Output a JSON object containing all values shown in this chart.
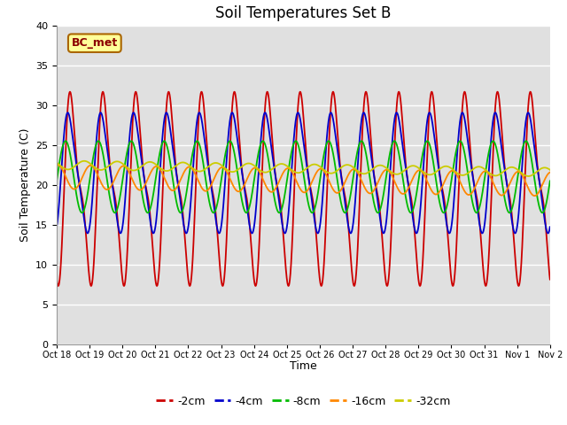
{
  "title": "Soil Temperatures Set B",
  "xlabel": "Time",
  "ylabel": "Soil Temperature (C)",
  "annotation": "BC_met",
  "ylim": [
    0,
    40
  ],
  "xlim_days": 15,
  "tick_labels": [
    "Oct 18",
    "Oct 19",
    "Oct 20",
    "Oct 21",
    "Oct 22",
    "Oct 23",
    "Oct 24",
    "Oct 25",
    "Oct 26",
    "Oct 27",
    "Oct 28",
    "Oct 29",
    "Oct 30",
    "Oct 31",
    "Nov 1",
    "Nov 2"
  ],
  "colors": {
    "-2cm": "#cc0000",
    "-4cm": "#0000cc",
    "-8cm": "#00bb00",
    "-16cm": "#ff8800",
    "-32cm": "#cccc00"
  },
  "background_color": "#e0e0e0",
  "title_fontsize": 12,
  "axis_label_fontsize": 9,
  "tick_fontsize": 7,
  "line_width": 1.3,
  "annotation_fontsize": 9,
  "legend_fontsize": 9
}
